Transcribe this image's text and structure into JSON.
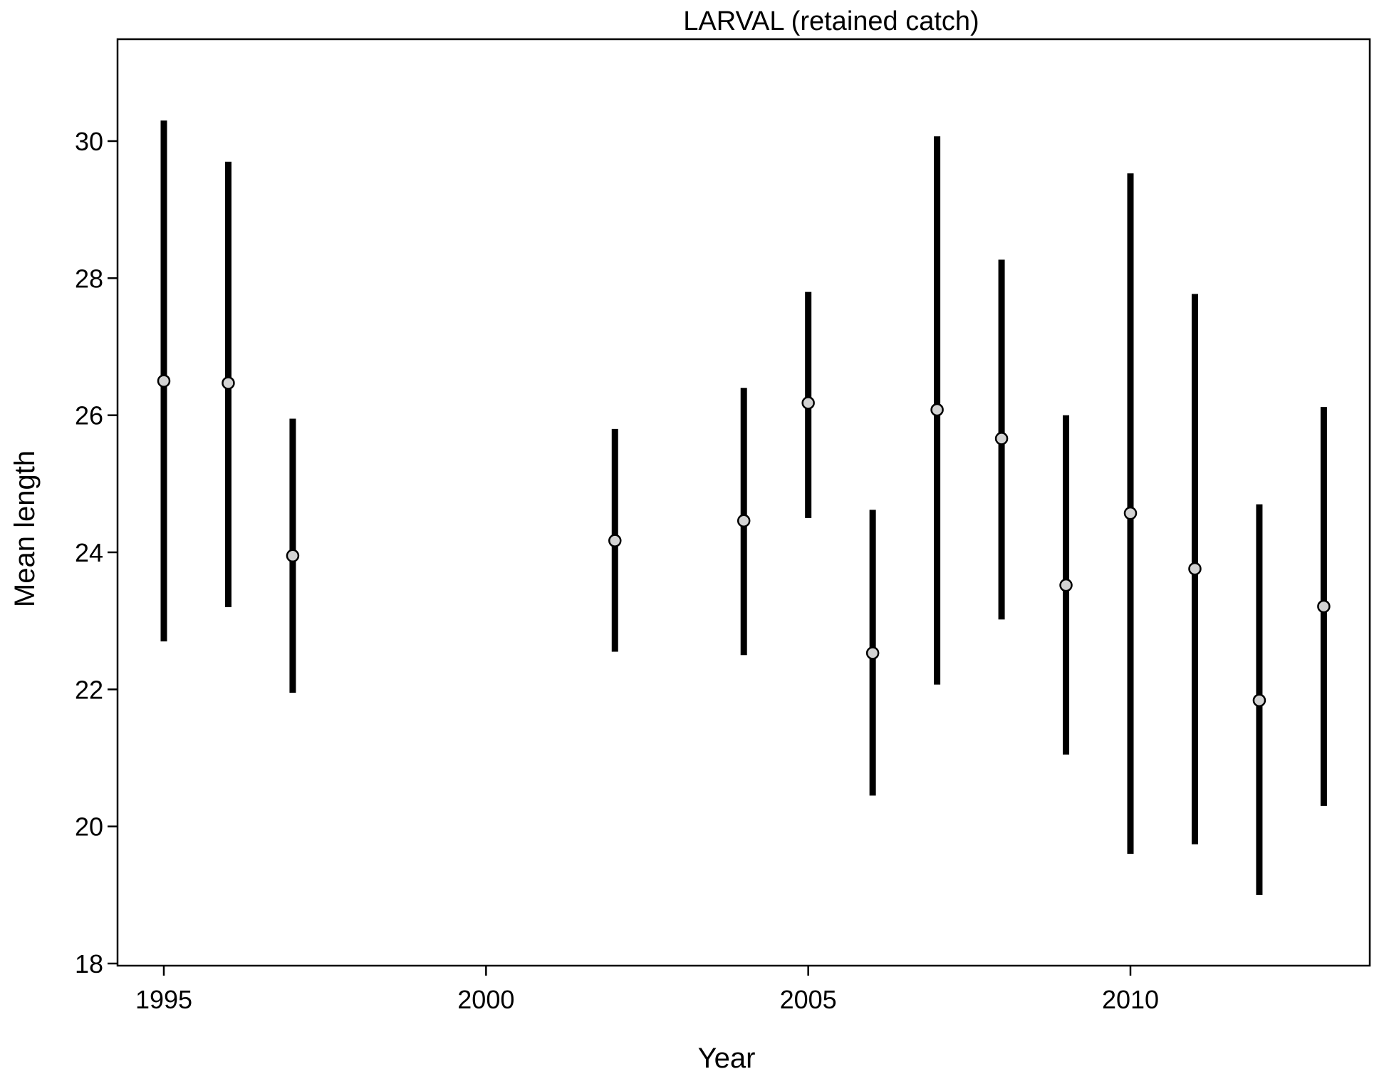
{
  "chart_data": {
    "type": "scatter",
    "title": "LARVAL (retained catch)",
    "xlabel": "Year",
    "ylabel": "Mean length",
    "xlim": [
      1994.3,
      2013.7
    ],
    "ylim": [
      18,
      31.5
    ],
    "x_ticks": [
      1995,
      2000,
      2005,
      2010
    ],
    "y_ticks": [
      18,
      20,
      22,
      24,
      26,
      28,
      30
    ],
    "grid": false,
    "legend": "none",
    "points": [
      {
        "year": 1995,
        "mean": 26.5,
        "lower": 22.7,
        "upper": 30.3
      },
      {
        "year": 1996,
        "mean": 26.47,
        "lower": 23.2,
        "upper": 29.7
      },
      {
        "year": 1997,
        "mean": 23.95,
        "lower": 21.95,
        "upper": 25.95
      },
      {
        "year": 2002,
        "mean": 24.17,
        "lower": 22.55,
        "upper": 25.8
      },
      {
        "year": 2004,
        "mean": 24.46,
        "lower": 22.5,
        "upper": 26.4
      },
      {
        "year": 2005,
        "mean": 26.18,
        "lower": 24.5,
        "upper": 27.8
      },
      {
        "year": 2006,
        "mean": 22.53,
        "lower": 20.45,
        "upper": 24.62
      },
      {
        "year": 2007,
        "mean": 26.08,
        "lower": 22.07,
        "upper": 30.07
      },
      {
        "year": 2008,
        "mean": 25.66,
        "lower": 23.02,
        "upper": 28.27
      },
      {
        "year": 2009,
        "mean": 23.52,
        "lower": 21.05,
        "upper": 26.0
      },
      {
        "year": 2010,
        "mean": 24.57,
        "lower": 19.6,
        "upper": 29.53
      },
      {
        "year": 2011,
        "mean": 23.76,
        "lower": 19.74,
        "upper": 27.77
      },
      {
        "year": 2012,
        "mean": 21.84,
        "lower": 19.0,
        "upper": 24.7
      },
      {
        "year": 2013,
        "mean": 23.21,
        "lower": 20.3,
        "upper": 26.12
      }
    ]
  },
  "colors": {
    "error_bar": "#000000",
    "point_fill": "#d3d3d3",
    "point_stroke": "#000000",
    "frame": "#000000"
  }
}
